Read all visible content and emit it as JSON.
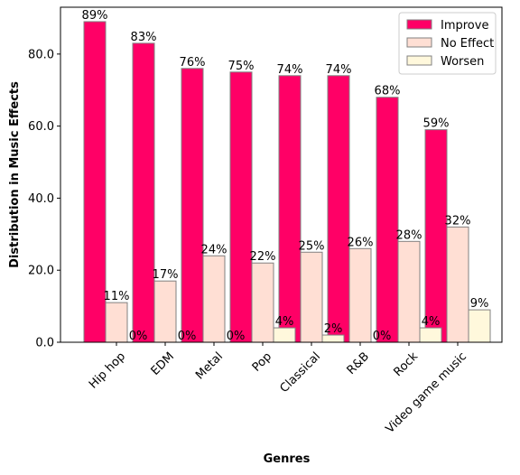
{
  "chart_data": {
    "type": "bar",
    "title": "",
    "xlabel": "Genres",
    "ylabel": "Distribution in Music Effects",
    "ylim": [
      0,
      93
    ],
    "yticks": [
      0,
      20,
      40,
      60,
      80
    ],
    "ytick_labels": [
      "0.0",
      "20.0",
      "40.0",
      "60.0",
      "80.0"
    ],
    "categories": [
      "Hip hop",
      "EDM",
      "Metal",
      "Pop",
      "Classical",
      "R&B",
      "Rock",
      "Video game music"
    ],
    "series": [
      {
        "name": "Improve",
        "color": "#ff0066",
        "values": [
          89,
          83,
          76,
          75,
          74,
          74,
          68,
          59
        ]
      },
      {
        "name": "No Effect",
        "color": "#ffdfd4",
        "values": [
          11,
          17,
          24,
          22,
          25,
          26,
          28,
          32
        ]
      },
      {
        "name": "Worsen",
        "color": "#fff8dc",
        "values": [
          0,
          0,
          0,
          4,
          2,
          0,
          4,
          9
        ]
      }
    ],
    "bar_edge_color": "#808080",
    "value_label_suffix": "%",
    "legend_position": "top-right",
    "grid": false
  }
}
